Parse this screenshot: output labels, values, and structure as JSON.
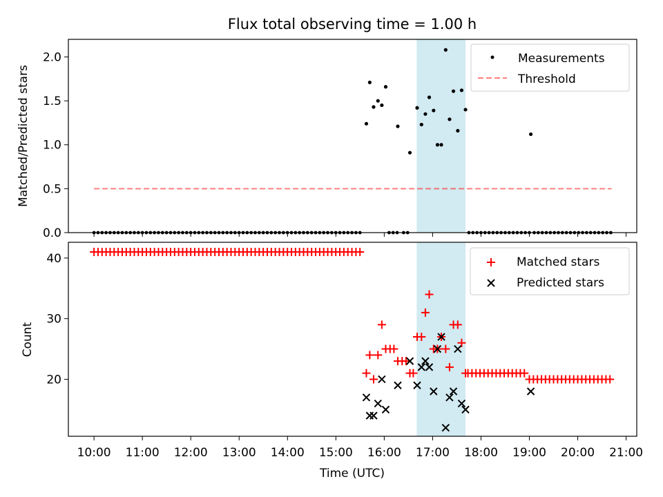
{
  "colors": {
    "shade": "#add8e6",
    "threshold": "#ff0000",
    "measurement": "#000000",
    "matched": "#ff0000",
    "predicted": "#000000"
  },
  "chart_data": [
    {
      "type": "scatter",
      "title": "Flux total observing time = 1.00 h",
      "xlabel": "",
      "ylabel": "Matched/Predicted stars",
      "xlim": [
        9.47,
        21.22
      ],
      "ylim": [
        0,
        2.2
      ],
      "yticks": [
        0.0,
        0.5,
        1.0,
        1.5,
        2.0
      ],
      "ytick_labels": [
        "0.0",
        "0.5",
        "1.0",
        "1.5",
        "2.0"
      ],
      "highlight_span": [
        16.67,
        17.68
      ],
      "legend": {
        "placement": "top-right",
        "entries": [
          {
            "label": "Measurements",
            "marker": "dot"
          },
          {
            "label": "Threshold",
            "marker": "dashed-line"
          }
        ]
      },
      "threshold": {
        "value": 0.5,
        "x_range": [
          10.0,
          20.7
        ]
      },
      "zero_points": {
        "ranges": [
          [
            10.0,
            15.55,
            0.0833
          ],
          [
            16.1,
            16.3,
            0.0833
          ],
          [
            16.4,
            16.5,
            0.0833
          ],
          [
            17.75,
            19.0,
            0.0833
          ],
          [
            19.1,
            20.7,
            0.0833
          ]
        ]
      },
      "measurements": {
        "x": [
          15.63,
          15.7,
          15.78,
          15.87,
          15.95,
          16.03,
          16.28,
          16.53,
          16.68,
          16.77,
          16.85,
          16.93,
          17.02,
          17.1,
          17.18,
          17.27,
          17.35,
          17.43,
          17.52,
          17.6,
          17.68,
          19.03
        ],
        "y": [
          1.24,
          1.71,
          1.43,
          1.5,
          1.45,
          1.66,
          1.21,
          0.91,
          1.42,
          1.23,
          1.35,
          1.54,
          1.39,
          1.0,
          1.0,
          2.08,
          1.29,
          1.61,
          1.16,
          1.62,
          1.4,
          1.12
        ]
      }
    },
    {
      "type": "scatter",
      "title": "",
      "xlabel": "Time (UTC)",
      "ylabel": "Count",
      "xlim": [
        9.47,
        21.22
      ],
      "ylim": [
        10.6,
        42.6
      ],
      "yticks": [
        20,
        30,
        40
      ],
      "ytick_labels": [
        "20",
        "30",
        "40"
      ],
      "xticks": [
        10,
        11,
        12,
        13,
        14,
        15,
        16,
        17,
        18,
        19,
        20,
        21
      ],
      "xtick_labels": [
        "10:00",
        "11:00",
        "12:00",
        "13:00",
        "14:00",
        "15:00",
        "16:00",
        "17:00",
        "18:00",
        "19:00",
        "20:00",
        "21:00"
      ],
      "highlight_span": [
        16.67,
        17.68
      ],
      "legend": {
        "placement": "top-right",
        "entries": [
          {
            "label": "Matched stars",
            "marker": "plus"
          },
          {
            "label": "Predicted stars",
            "marker": "x"
          }
        ]
      },
      "matched_constant_ranges": [
        {
          "start": 10.0,
          "end": 15.55,
          "step": 0.0833,
          "value": 41
        },
        {
          "start": 17.73,
          "end": 18.95,
          "step": 0.0833,
          "value": 21
        },
        {
          "start": 19.0,
          "end": 20.7,
          "step": 0.0833,
          "value": 20
        }
      ],
      "matched": {
        "x": [
          15.63,
          15.7,
          15.78,
          15.87,
          15.95,
          16.03,
          16.12,
          16.2,
          16.28,
          16.37,
          16.45,
          16.53,
          16.6,
          16.68,
          16.77,
          16.85,
          16.93,
          17.02,
          17.1,
          17.18,
          17.27,
          17.35,
          17.43,
          17.52,
          17.6,
          17.68
        ],
        "y": [
          21,
          24,
          20,
          24,
          29,
          25,
          25,
          25,
          23,
          23,
          23,
          21,
          21,
          27,
          27,
          31,
          34,
          25,
          25,
          27,
          25,
          22,
          29,
          29,
          26,
          21
        ]
      },
      "predicted": {
        "x": [
          15.63,
          15.7,
          15.78,
          15.87,
          15.95,
          16.03,
          16.28,
          16.53,
          16.68,
          16.77,
          16.85,
          16.93,
          17.02,
          17.1,
          17.18,
          17.27,
          17.35,
          17.43,
          17.52,
          17.6,
          17.68,
          19.03
        ],
        "y": [
          17,
          14,
          14,
          16,
          20,
          15,
          19,
          23,
          19,
          22,
          23,
          22,
          18,
          25,
          27,
          12,
          17,
          18,
          25,
          16,
          15,
          18
        ]
      }
    }
  ]
}
